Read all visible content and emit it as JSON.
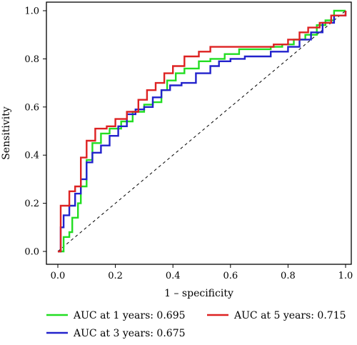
{
  "chart_data": {
    "type": "line",
    "title": "",
    "xlabel": "1 – specificity",
    "ylabel": "Sensitivity",
    "xlim": [
      0,
      1
    ],
    "ylim": [
      0,
      1
    ],
    "xticks": [
      "0.0",
      "0.2",
      "0.4",
      "0.6",
      "0.8",
      "1.0"
    ],
    "yticks": [
      "0.0",
      "0.2",
      "0.4",
      "0.6",
      "0.8",
      "1.0"
    ],
    "grid": false,
    "reference_line": "diagonal dashed from (0,0) to (1,1)",
    "legend_position": "bottom",
    "series": [
      {
        "name": "AUC at 1 years: 0.695",
        "color": "#22dd22",
        "points": [
          [
            0.0,
            0.0
          ],
          [
            0.02,
            0.0
          ],
          [
            0.02,
            0.06
          ],
          [
            0.04,
            0.06
          ],
          [
            0.04,
            0.08
          ],
          [
            0.05,
            0.08
          ],
          [
            0.05,
            0.14
          ],
          [
            0.07,
            0.14
          ],
          [
            0.07,
            0.2
          ],
          [
            0.08,
            0.2
          ],
          [
            0.08,
            0.27
          ],
          [
            0.1,
            0.27
          ],
          [
            0.1,
            0.38
          ],
          [
            0.12,
            0.38
          ],
          [
            0.12,
            0.45
          ],
          [
            0.15,
            0.45
          ],
          [
            0.15,
            0.49
          ],
          [
            0.18,
            0.49
          ],
          [
            0.18,
            0.51
          ],
          [
            0.22,
            0.51
          ],
          [
            0.22,
            0.54
          ],
          [
            0.26,
            0.54
          ],
          [
            0.26,
            0.58
          ],
          [
            0.3,
            0.58
          ],
          [
            0.3,
            0.61
          ],
          [
            0.33,
            0.61
          ],
          [
            0.33,
            0.62
          ],
          [
            0.36,
            0.62
          ],
          [
            0.36,
            0.67
          ],
          [
            0.38,
            0.67
          ],
          [
            0.38,
            0.71
          ],
          [
            0.41,
            0.71
          ],
          [
            0.41,
            0.74
          ],
          [
            0.44,
            0.74
          ],
          [
            0.44,
            0.76
          ],
          [
            0.49,
            0.76
          ],
          [
            0.49,
            0.79
          ],
          [
            0.53,
            0.79
          ],
          [
            0.53,
            0.8
          ],
          [
            0.58,
            0.8
          ],
          [
            0.58,
            0.82
          ],
          [
            0.63,
            0.82
          ],
          [
            0.63,
            0.84
          ],
          [
            0.74,
            0.84
          ],
          [
            0.74,
            0.85
          ],
          [
            0.78,
            0.85
          ],
          [
            0.78,
            0.86
          ],
          [
            0.82,
            0.86
          ],
          [
            0.82,
            0.88
          ],
          [
            0.86,
            0.88
          ],
          [
            0.86,
            0.9
          ],
          [
            0.9,
            0.9
          ],
          [
            0.9,
            0.94
          ],
          [
            0.93,
            0.94
          ],
          [
            0.93,
            0.96
          ],
          [
            0.96,
            0.96
          ],
          [
            0.96,
            1.0
          ],
          [
            1.0,
            1.0
          ]
        ]
      },
      {
        "name": "AUC at 3 years: 0.675",
        "color": "#2222cc",
        "points": [
          [
            0.0,
            0.0
          ],
          [
            0.01,
            0.0
          ],
          [
            0.01,
            0.1
          ],
          [
            0.02,
            0.1
          ],
          [
            0.02,
            0.15
          ],
          [
            0.04,
            0.15
          ],
          [
            0.04,
            0.19
          ],
          [
            0.06,
            0.19
          ],
          [
            0.06,
            0.24
          ],
          [
            0.08,
            0.24
          ],
          [
            0.08,
            0.3
          ],
          [
            0.1,
            0.3
          ],
          [
            0.1,
            0.37
          ],
          [
            0.12,
            0.37
          ],
          [
            0.12,
            0.41
          ],
          [
            0.15,
            0.41
          ],
          [
            0.15,
            0.44
          ],
          [
            0.18,
            0.44
          ],
          [
            0.18,
            0.48
          ],
          [
            0.21,
            0.48
          ],
          [
            0.21,
            0.52
          ],
          [
            0.24,
            0.52
          ],
          [
            0.24,
            0.57
          ],
          [
            0.27,
            0.57
          ],
          [
            0.27,
            0.59
          ],
          [
            0.3,
            0.59
          ],
          [
            0.3,
            0.6
          ],
          [
            0.33,
            0.6
          ],
          [
            0.33,
            0.64
          ],
          [
            0.36,
            0.64
          ],
          [
            0.36,
            0.67
          ],
          [
            0.39,
            0.67
          ],
          [
            0.39,
            0.69
          ],
          [
            0.43,
            0.69
          ],
          [
            0.43,
            0.7
          ],
          [
            0.48,
            0.7
          ],
          [
            0.48,
            0.74
          ],
          [
            0.53,
            0.74
          ],
          [
            0.53,
            0.77
          ],
          [
            0.56,
            0.77
          ],
          [
            0.56,
            0.79
          ],
          [
            0.6,
            0.79
          ],
          [
            0.6,
            0.8
          ],
          [
            0.65,
            0.8
          ],
          [
            0.65,
            0.81
          ],
          [
            0.74,
            0.81
          ],
          [
            0.74,
            0.83
          ],
          [
            0.8,
            0.83
          ],
          [
            0.8,
            0.85
          ],
          [
            0.84,
            0.85
          ],
          [
            0.84,
            0.88
          ],
          [
            0.88,
            0.88
          ],
          [
            0.88,
            0.91
          ],
          [
            0.92,
            0.91
          ],
          [
            0.92,
            0.95
          ],
          [
            0.96,
            0.95
          ],
          [
            0.96,
            0.98
          ],
          [
            1.0,
            0.98
          ],
          [
            1.0,
            1.0
          ]
        ]
      },
      {
        "name": "AUC at 5 years: 0.715",
        "color": "#dd2222",
        "points": [
          [
            0.0,
            0.0
          ],
          [
            0.01,
            0.0
          ],
          [
            0.01,
            0.19
          ],
          [
            0.04,
            0.19
          ],
          [
            0.04,
            0.25
          ],
          [
            0.06,
            0.25
          ],
          [
            0.06,
            0.27
          ],
          [
            0.08,
            0.27
          ],
          [
            0.08,
            0.39
          ],
          [
            0.1,
            0.39
          ],
          [
            0.1,
            0.46
          ],
          [
            0.13,
            0.46
          ],
          [
            0.13,
            0.51
          ],
          [
            0.17,
            0.51
          ],
          [
            0.17,
            0.52
          ],
          [
            0.2,
            0.52
          ],
          [
            0.2,
            0.55
          ],
          [
            0.24,
            0.55
          ],
          [
            0.24,
            0.58
          ],
          [
            0.28,
            0.58
          ],
          [
            0.28,
            0.63
          ],
          [
            0.31,
            0.63
          ],
          [
            0.31,
            0.67
          ],
          [
            0.34,
            0.67
          ],
          [
            0.34,
            0.7
          ],
          [
            0.37,
            0.7
          ],
          [
            0.37,
            0.74
          ],
          [
            0.4,
            0.74
          ],
          [
            0.4,
            0.77
          ],
          [
            0.44,
            0.77
          ],
          [
            0.44,
            0.81
          ],
          [
            0.49,
            0.81
          ],
          [
            0.49,
            0.83
          ],
          [
            0.53,
            0.83
          ],
          [
            0.53,
            0.85
          ],
          [
            0.75,
            0.85
          ],
          [
            0.75,
            0.86
          ],
          [
            0.8,
            0.86
          ],
          [
            0.8,
            0.88
          ],
          [
            0.84,
            0.88
          ],
          [
            0.84,
            0.91
          ],
          [
            0.87,
            0.91
          ],
          [
            0.87,
            0.93
          ],
          [
            0.91,
            0.93
          ],
          [
            0.91,
            0.95
          ],
          [
            0.95,
            0.95
          ],
          [
            0.95,
            0.98
          ],
          [
            1.0,
            0.98
          ],
          [
            1.0,
            1.0
          ]
        ]
      }
    ]
  }
}
